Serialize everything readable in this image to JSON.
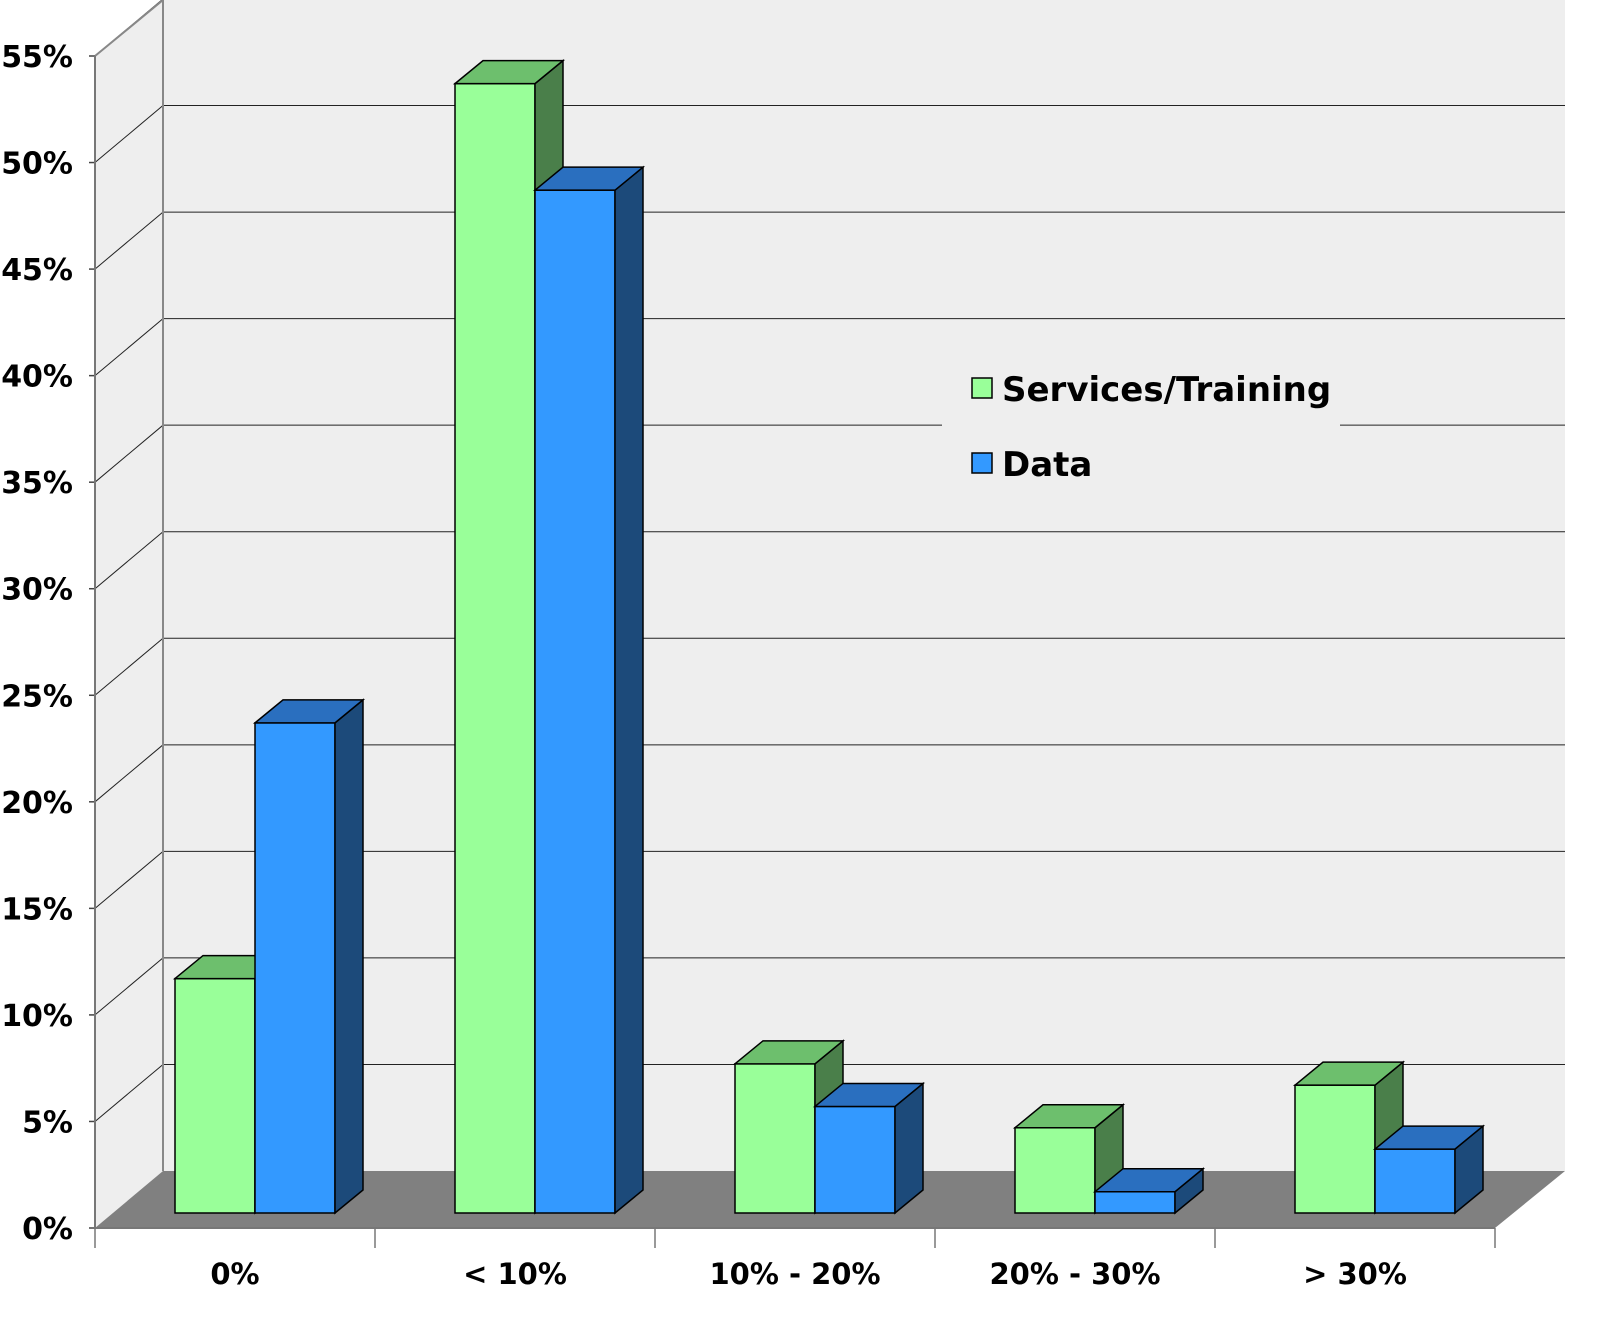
{
  "chart_data": {
    "type": "bar",
    "title": "",
    "xlabel": "",
    "ylabel": "",
    "categories": [
      "0%",
      "< 10%",
      "10% - 20%",
      "20% - 30%",
      "> 30%"
    ],
    "series": [
      {
        "name": "Services/Training",
        "values": [
          11,
          53,
          7,
          4,
          6
        ],
        "color": "#99ff99",
        "side_color": "#4a7f4a",
        "top_color": "#6dbf6d"
      },
      {
        "name": "Data",
        "values": [
          23,
          48,
          5,
          1,
          3
        ],
        "color": "#3399ff",
        "side_color": "#1c4a7a",
        "top_color": "#2a6fbf"
      }
    ],
    "ylim": [
      0,
      55
    ],
    "yticks": [
      "0%",
      "5%",
      "10%",
      "15%",
      "20%",
      "25%",
      "30%",
      "35%",
      "40%",
      "45%",
      "50%",
      "55%"
    ],
    "grid": true,
    "legend": "center-right",
    "three_d": true,
    "wall_color": "#eeeeee",
    "floor_color": "#808080"
  }
}
